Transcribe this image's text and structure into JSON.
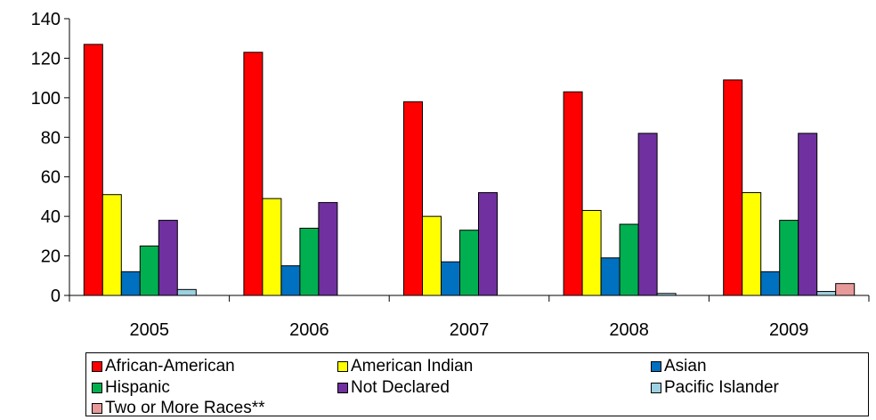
{
  "chart_data": {
    "type": "bar",
    "categories": [
      "2005",
      "2006",
      "2007",
      "2008",
      "2009"
    ],
    "series": [
      {
        "name": "African-American",
        "color": "#FF0000",
        "values": [
          127,
          123,
          98,
          103,
          109
        ]
      },
      {
        "name": "American Indian",
        "color": "#FFFF00",
        "values": [
          51,
          49,
          40,
          43,
          52
        ]
      },
      {
        "name": "Asian",
        "color": "#0070C0",
        "values": [
          12,
          15,
          17,
          19,
          12
        ]
      },
      {
        "name": "Hispanic",
        "color": "#00B050",
        "values": [
          25,
          34,
          33,
          36,
          38
        ]
      },
      {
        "name": "Not Declared",
        "color": "#7030A0",
        "values": [
          38,
          47,
          52,
          82,
          82
        ]
      },
      {
        "name": "Pacific Islander",
        "color": "#9DD0E0",
        "values": [
          3,
          0,
          0,
          1,
          2
        ]
      },
      {
        "name": "Two or More Races**",
        "color": "#E69A9A",
        "values": [
          0,
          0,
          0,
          0,
          6
        ]
      }
    ],
    "ylim": [
      0,
      140
    ],
    "yticks": [
      0,
      20,
      40,
      60,
      80,
      100,
      120,
      140
    ],
    "grid": false,
    "legend_position": "bottom",
    "title": "",
    "xlabel": "",
    "ylabel": ""
  }
}
